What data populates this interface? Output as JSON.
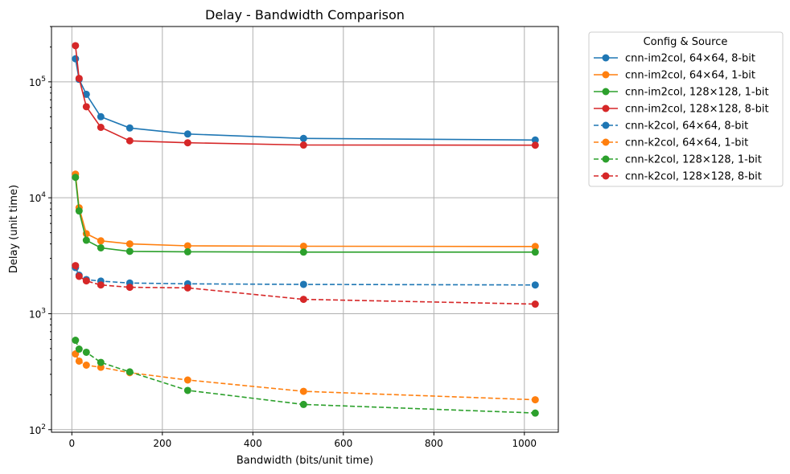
{
  "chart_data": {
    "type": "line",
    "title": "Delay - Bandwidth Comparison",
    "xlabel": "Bandwidth (bits/unit time)",
    "ylabel": "Delay (unit time)",
    "xlim": [
      -45,
      1075
    ],
    "ylim": [
      95,
      300000
    ],
    "yscale": "log",
    "grid": true,
    "x_ticks": [
      {
        "value": 0,
        "label": "0"
      },
      {
        "value": 200,
        "label": "200"
      },
      {
        "value": 400,
        "label": "400"
      },
      {
        "value": 600,
        "label": "600"
      },
      {
        "value": 800,
        "label": "800"
      },
      {
        "value": 1000,
        "label": "1000"
      }
    ],
    "y_ticks": [
      {
        "value": 100,
        "base": "10",
        "exp": "2"
      },
      {
        "value": 1000,
        "base": "10",
        "exp": "3"
      },
      {
        "value": 10000,
        "base": "10",
        "exp": "4"
      },
      {
        "value": 100000,
        "base": "10",
        "exp": "5"
      }
    ],
    "legend": {
      "title": "Config & Source",
      "position": "outside-right"
    },
    "x": [
      8,
      16,
      32,
      64,
      128,
      256,
      512,
      1024
    ],
    "series": [
      {
        "name": "cnn-im2col, 64×64, 8-bit",
        "color": "#1f77b4",
        "dashed": false,
        "values": [
          158000,
          105000,
          78000,
          50000,
          40000,
          35500,
          32500,
          31500
        ]
      },
      {
        "name": "cnn-im2col, 64×64, 1-bit",
        "color": "#ff7f0e",
        "dashed": false,
        "values": [
          16000,
          8200,
          4900,
          4250,
          4000,
          3850,
          3820,
          3800
        ]
      },
      {
        "name": "cnn-im2col, 128×128, 1-bit",
        "color": "#2ca02c",
        "dashed": false,
        "values": [
          15000,
          7700,
          4300,
          3700,
          3450,
          3420,
          3400,
          3400
        ]
      },
      {
        "name": "cnn-im2col, 128×128, 8-bit",
        "color": "#d62728",
        "dashed": false,
        "values": [
          205000,
          107000,
          61000,
          40500,
          31000,
          29800,
          28500,
          28400
        ]
      },
      {
        "name": "cnn-k2col, 64×64, 8-bit",
        "color": "#1f77b4",
        "dashed": true,
        "values": [
          2500,
          2150,
          1970,
          1910,
          1840,
          1810,
          1790,
          1770
        ]
      },
      {
        "name": "cnn-k2col, 64×64, 1-bit",
        "color": "#ff7f0e",
        "dashed": true,
        "values": [
          450,
          390,
          360,
          345,
          310,
          268,
          214,
          181
        ]
      },
      {
        "name": "cnn-k2col, 128×128, 1-bit",
        "color": "#2ca02c",
        "dashed": true,
        "values": [
          590,
          495,
          465,
          380,
          315,
          218,
          165,
          139
        ]
      },
      {
        "name": "cnn-k2col, 128×128, 8-bit",
        "color": "#d62728",
        "dashed": true,
        "values": [
          2600,
          2100,
          1920,
          1770,
          1690,
          1670,
          1330,
          1210
        ]
      }
    ]
  }
}
